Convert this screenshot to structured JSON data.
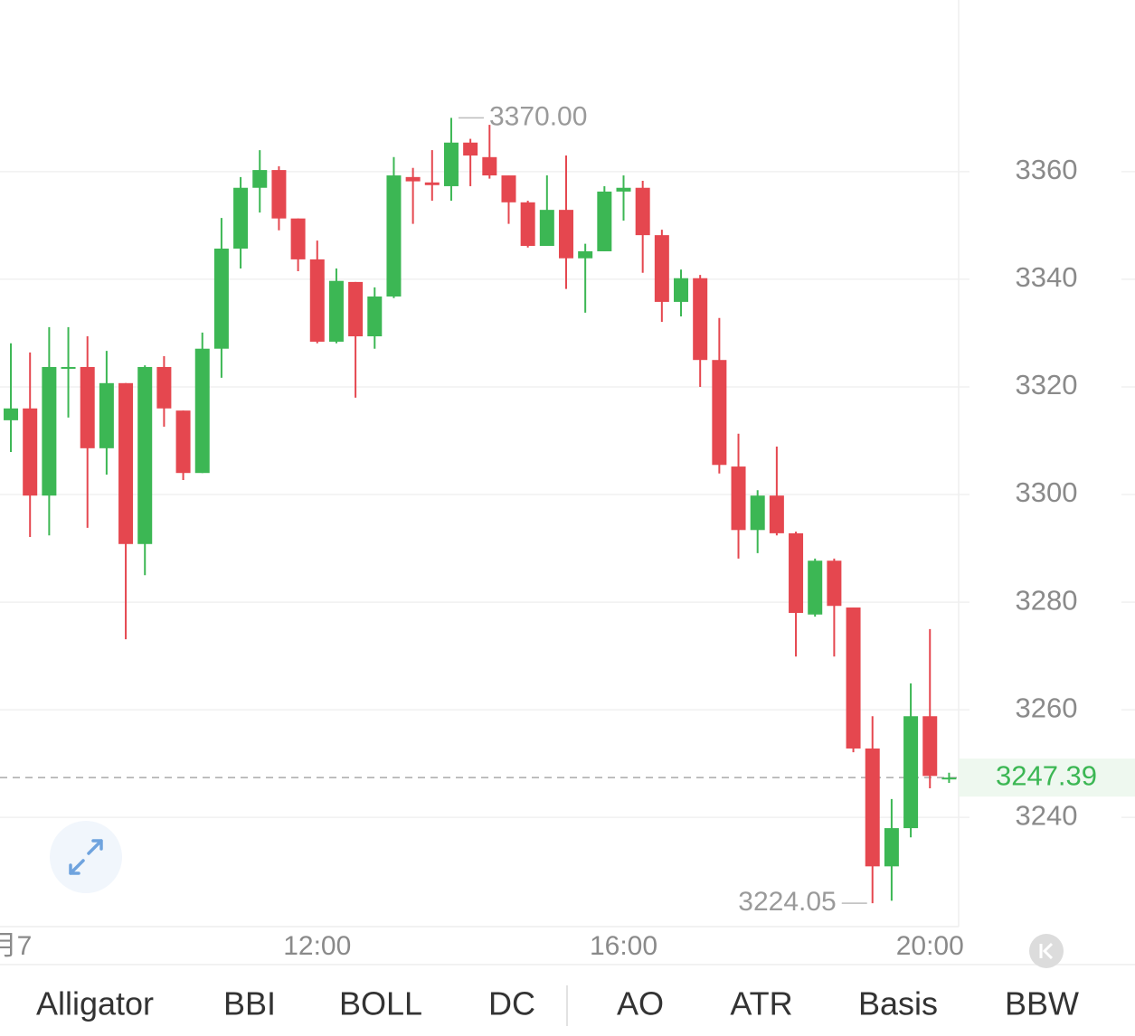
{
  "chart_data": {
    "type": "candlestick",
    "categories": [
      "月7",
      null,
      null,
      null,
      null,
      null,
      null,
      null,
      null,
      null,
      null,
      null,
      null,
      null,
      null,
      null,
      "12:00",
      null,
      null,
      null,
      null,
      null,
      null,
      null,
      null,
      null,
      null,
      null,
      null,
      null,
      null,
      null,
      "16:00",
      null,
      null,
      null,
      null,
      null,
      null,
      null,
      null,
      null,
      null,
      null,
      null,
      null,
      null,
      null,
      "20:00",
      null
    ],
    "open": [
      3313.8,
      3316.0,
      3299.8,
      3323.4,
      3323.7,
      3308.6,
      3320.7,
      3290.8,
      3323.7,
      3315.6,
      3304.0,
      3327.1,
      3345.7,
      3357.0,
      3360.3,
      3351.3,
      3343.7,
      3328.4,
      3339.5,
      3329.4,
      3336.8,
      3359.0,
      3358.0,
      3357.3,
      3365.4,
      3362.7,
      3359.3,
      3354.3,
      3346.2,
      3352.9,
      3343.9,
      3345.2,
      3356.3,
      3357.0,
      3348.2,
      3335.8,
      3340.2,
      3325.0,
      3305.2,
      3293.4,
      3299.8,
      3292.8,
      3277.7,
      3287.7,
      3279.0,
      3252.8,
      3230.9,
      3238.0,
      3258.8,
      3247.2
    ],
    "high": [
      3328.1,
      3326.4,
      3331.1,
      3331.1,
      3329.4,
      3326.7,
      3320.7,
      3324.0,
      3325.7,
      3315.6,
      3330.1,
      3351.4,
      3359.0,
      3364.0,
      3361.0,
      3351.3,
      3347.2,
      3342.0,
      3339.5,
      3338.5,
      3362.7,
      3360.7,
      3364.0,
      3370,
      3366.1,
      3368.7,
      3359.3,
      3354.6,
      3359.3,
      3363.0,
      3346.6,
      3357.3,
      3359.3,
      3358.3,
      3349.2,
      3341.8,
      3340.8,
      3332.8,
      3311.3,
      3300.8,
      3308.9,
      3293.1,
      3288.1,
      3288.1,
      3279.0,
      3258.8,
      3243.4,
      3264.9,
      3275.0,
      3248.3
    ],
    "low": [
      3307.9,
      3292.1,
      3292.4,
      3314.3,
      3293.8,
      3303.7,
      3273.1,
      3285.0,
      3312.6,
      3302.7,
      3304.0,
      3321.7,
      3342.0,
      3352.4,
      3349.1,
      3341.5,
      3328.1,
      3328.1,
      3318.0,
      3327.1,
      3336.5,
      3350.3,
      3354.6,
      3354.6,
      3357.3,
      3358.7,
      3350.3,
      3345.9,
      3346.2,
      3338.2,
      3333.8,
      3345.2,
      3350.9,
      3341.2,
      3332.1,
      3333.1,
      3320.0,
      3303.9,
      3288.1,
      3289.1,
      3292.4,
      3269.9,
      3277.3,
      3269.9,
      3252.1,
      3224.05,
      3224.5,
      3236.3,
      3245.4,
      3246.4
    ],
    "close": [
      3316.0,
      3299.8,
      3323.7,
      3323.7,
      3308.6,
      3320.7,
      3290.8,
      3323.7,
      3316.0,
      3304.0,
      3327.1,
      3345.7,
      3357.0,
      3360.3,
      3351.3,
      3343.7,
      3328.4,
      3339.7,
      3329.4,
      3336.8,
      3359.3,
      3358.2,
      3357.5,
      3365.4,
      3363.0,
      3359.3,
      3354.3,
      3346.2,
      3352.9,
      3343.9,
      3345.2,
      3356.3,
      3357.0,
      3348.2,
      3335.8,
      3340.2,
      3325.0,
      3305.5,
      3293.4,
      3299.8,
      3292.8,
      3278.0,
      3287.7,
      3279.3,
      3252.8,
      3230.9,
      3238.0,
      3258.8,
      3247.7,
      3247.39
    ],
    "up_color": "#3cb754",
    "down_color": "#e5474f",
    "ylim": [
      3219.7,
      3391.9
    ],
    "yticks": [
      3240,
      3260,
      3280,
      3300,
      3320,
      3340,
      3360
    ],
    "grid": true,
    "max_label": {
      "value": 3370,
      "label": "3370.00"
    },
    "min_label": 3224.05,
    "last_price": 3247.39
  },
  "indicators": [
    "Alligator",
    "BBI",
    "BOLL",
    "DC",
    "AO",
    "ATR",
    "Basis",
    "BBW"
  ]
}
